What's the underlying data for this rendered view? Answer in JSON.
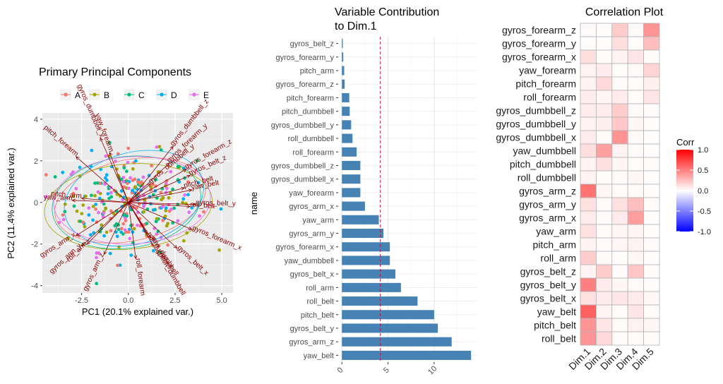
{
  "chart_data": [
    {
      "type": "scatter",
      "title": "Primary Principal Components",
      "xlabel": "PC1 (20.1% explained var.)",
      "ylabel": "PC2 (11.4% explained var.)",
      "xlim": [
        -4.6,
        5.6
      ],
      "ylim": [
        -4.35,
        4.3
      ],
      "xticks": [
        -2.5,
        0.0,
        2.5,
        5.0
      ],
      "xtick_labels": [
        "-2.5",
        "0.0",
        "2.5",
        "5.0"
      ],
      "yticks": [
        -4,
        -2,
        0,
        2,
        4
      ],
      "ytick_labels": [
        "-4",
        "-2",
        "0",
        "2",
        "4"
      ],
      "grid": true,
      "legend_position": "top",
      "series": [
        {
          "name": "A",
          "color": "#F8766D"
        },
        {
          "name": "B",
          "color": "#A3A500"
        },
        {
          "name": "C",
          "color": "#00BF7D"
        },
        {
          "name": "D",
          "color": "#00B0F6"
        },
        {
          "name": "E",
          "color": "#E76BF3"
        }
      ],
      "arrow_color": "#8B0000",
      "loadings": [
        {
          "name": "roll_belt",
          "x": 3.3,
          "y": -0.2
        },
        {
          "name": "pitch_belt",
          "x": 3.0,
          "y": 0.7
        },
        {
          "name": "yaw_belt",
          "x": 3.4,
          "y": 0.6
        },
        {
          "name": "gyros_belt_x",
          "x": 2.6,
          "y": -2.2
        },
        {
          "name": "gyros_belt_y",
          "x": 3.6,
          "y": -0.1
        },
        {
          "name": "gyros_belt_z",
          "x": 3.3,
          "y": 1.3
        },
        {
          "name": "roll_arm",
          "x": -2.2,
          "y": -2.0
        },
        {
          "name": "pitch_arm",
          "x": -2.5,
          "y": 0.2
        },
        {
          "name": "yaw_arm",
          "x": -3.0,
          "y": 0.1
        },
        {
          "name": "gyros_arm_x",
          "x": -2.8,
          "y": -1.6
        },
        {
          "name": "gyros_arm_y",
          "x": -2.5,
          "y": -2.1
        },
        {
          "name": "gyros_arm_z",
          "x": -1.3,
          "y": -2.5
        },
        {
          "name": "roll_dumbbell",
          "x": 1.0,
          "y": -1.5
        },
        {
          "name": "pitch_dumbbell",
          "x": 1.6,
          "y": -2.5
        },
        {
          "name": "yaw_dumbbell",
          "x": 1.2,
          "y": -1.7
        },
        {
          "name": "gyros_dumbbell_x",
          "x": -1.5,
          "y": 3.1
        },
        {
          "name": "gyros_dumbbell_y",
          "x": 1.2,
          "y": 0.9
        },
        {
          "name": "gyros_dumbbell_z",
          "x": 2.4,
          "y": 2.7
        },
        {
          "name": "roll_forearm",
          "x": 0.4,
          "y": -2.7
        },
        {
          "name": "pitch_forearm",
          "x": -2.8,
          "y": 2.2
        },
        {
          "name": "yaw_forearm",
          "x": -1.0,
          "y": 2.4
        },
        {
          "name": "gyros_forearm_x",
          "x": 3.4,
          "y": -1.3
        },
        {
          "name": "gyros_forearm_y",
          "x": 2.2,
          "y": 1.9
        },
        {
          "name": "gyros_forearm_z",
          "x": 3.1,
          "y": 1.6
        }
      ],
      "ellipses": [
        {
          "series": "A",
          "cx": 0.1,
          "cy": 0.1,
          "rx": 4.1,
          "ry": 1.95,
          "angle": 12
        },
        {
          "series": "B",
          "cx": 0.0,
          "cy": -0.2,
          "rx": 4.5,
          "ry": 2.05,
          "angle": 5
        },
        {
          "series": "C",
          "cx": -0.1,
          "cy": 0.0,
          "rx": 4.0,
          "ry": 2.2,
          "angle": 8
        },
        {
          "series": "D",
          "cx": 0.3,
          "cy": 0.2,
          "rx": 3.8,
          "ry": 2.2,
          "angle": 15
        },
        {
          "series": "E",
          "cx": 0.2,
          "cy": 0.1,
          "rx": 4.2,
          "ry": 2.1,
          "angle": 3
        }
      ]
    },
    {
      "type": "bar",
      "orientation": "horizontal",
      "title": "Variable Contribution\nto Dim.1",
      "title_lines": [
        "Variable Contribution",
        "to Dim.1"
      ],
      "xlabel": "",
      "ylabel": "name",
      "xlim": [
        -0.4,
        14.6
      ],
      "xticks": [
        0,
        5,
        10
      ],
      "xtick_labels": [
        "0",
        "5",
        "10"
      ],
      "reference_line": 4.17,
      "bar_color": "#4682B4",
      "grid": true,
      "categories": [
        "gyros_belt_z",
        "gyros_forearm_y",
        "pitch_arm",
        "gyros_forearm_z",
        "pitch_forearm",
        "pitch_dumbbell",
        "gyros_dumbbell_y",
        "roll_dumbbell",
        "roll_forearm",
        "gyros_dumbbell_z",
        "gyros_dumbbell_x",
        "yaw_forearm",
        "gyros_arm_x",
        "yaw_arm",
        "gyros_arm_y",
        "gyros_forearm_x",
        "yaw_dumbbell",
        "gyros_belt_x",
        "roll_arm",
        "roll_belt",
        "pitch_belt",
        "gyros_belt_y",
        "gyros_arm_z",
        "yaw_belt"
      ],
      "values": [
        0.1,
        0.15,
        0.25,
        0.3,
        0.8,
        0.85,
        1.0,
        1.15,
        1.6,
        2.0,
        2.0,
        2.0,
        2.5,
        4.0,
        4.5,
        5.2,
        5.2,
        5.8,
        6.4,
        8.2,
        10.0,
        10.4,
        11.9,
        14.0
      ]
    },
    {
      "type": "heatmap",
      "title": "Correlation Plot",
      "legend_title": "Corr",
      "legend_ticks": [
        1.0,
        0.5,
        0.0,
        -0.5,
        -1.0
      ],
      "legend_tick_labels": [
        "1.0",
        "0.5",
        "0.0",
        "-0.5",
        "-1.0"
      ],
      "color_scale": {
        "low": "#0000FF",
        "mid": "#FFFFFF",
        "high": "#FF0000"
      },
      "columns": [
        "Dim.1",
        "Dim.2",
        "Dim.3",
        "Dim.4",
        "Dim.5"
      ],
      "rows": [
        "gyros_forearm_z",
        "gyros_forearm_y",
        "gyros_forearm_x",
        "yaw_forearm",
        "pitch_forearm",
        "roll_forearm",
        "gyros_dumbbell_z",
        "gyros_dumbbell_y",
        "gyros_dumbbell_x",
        "yaw_dumbbell",
        "pitch_dumbbell",
        "roll_dumbbell",
        "gyros_arm_z",
        "gyros_arm_y",
        "gyros_arm_x",
        "yaw_arm",
        "pitch_arm",
        "roll_arm",
        "gyros_belt_z",
        "gyros_belt_y",
        "gyros_belt_x",
        "yaw_belt",
        "pitch_belt",
        "roll_belt"
      ],
      "values": [
        [
          0.02,
          0.01,
          0.2,
          0.02,
          0.42
        ],
        [
          0.01,
          0.01,
          0.13,
          0.01,
          0.26
        ],
        [
          0.13,
          0.02,
          0.05,
          0.1,
          0.02
        ],
        [
          0.05,
          0.08,
          0.01,
          0.02,
          0.17
        ],
        [
          0.05,
          0.15,
          0.02,
          0.01,
          0.06
        ],
        [
          0.07,
          0.04,
          0.08,
          0.01,
          0.1
        ],
        [
          0.08,
          0.07,
          0.2,
          0.02,
          0.02
        ],
        [
          0.05,
          0.06,
          0.22,
          0.03,
          0.01
        ],
        [
          0.08,
          0.02,
          0.42,
          0.02,
          0.01
        ],
        [
          0.13,
          0.38,
          0.05,
          0.02,
          0.01
        ],
        [
          0.05,
          0.12,
          0.03,
          0.01,
          0.02
        ],
        [
          0.05,
          0.01,
          0.02,
          0.03,
          0.01
        ],
        [
          0.55,
          0.03,
          0.02,
          0.02,
          0.01
        ],
        [
          0.12,
          0.02,
          0.12,
          0.25,
          0.02
        ],
        [
          0.08,
          0.02,
          0.08,
          0.38,
          0.01
        ],
        [
          0.12,
          0.02,
          0.03,
          0.04,
          0.01
        ],
        [
          0.05,
          0.02,
          0.03,
          0.05,
          0.02
        ],
        [
          0.2,
          0.02,
          0.01,
          0.03,
          0.01
        ],
        [
          0.05,
          0.2,
          0.02,
          0.22,
          0.02
        ],
        [
          0.5,
          0.08,
          0.03,
          0.02,
          0.01
        ],
        [
          0.12,
          0.08,
          0.1,
          0.08,
          0.03
        ],
        [
          0.62,
          0.05,
          0.02,
          0.1,
          0.02
        ],
        [
          0.42,
          0.1,
          0.02,
          0.05,
          0.03
        ],
        [
          0.42,
          0.15,
          0.02,
          0.02,
          0.02
        ]
      ]
    }
  ]
}
